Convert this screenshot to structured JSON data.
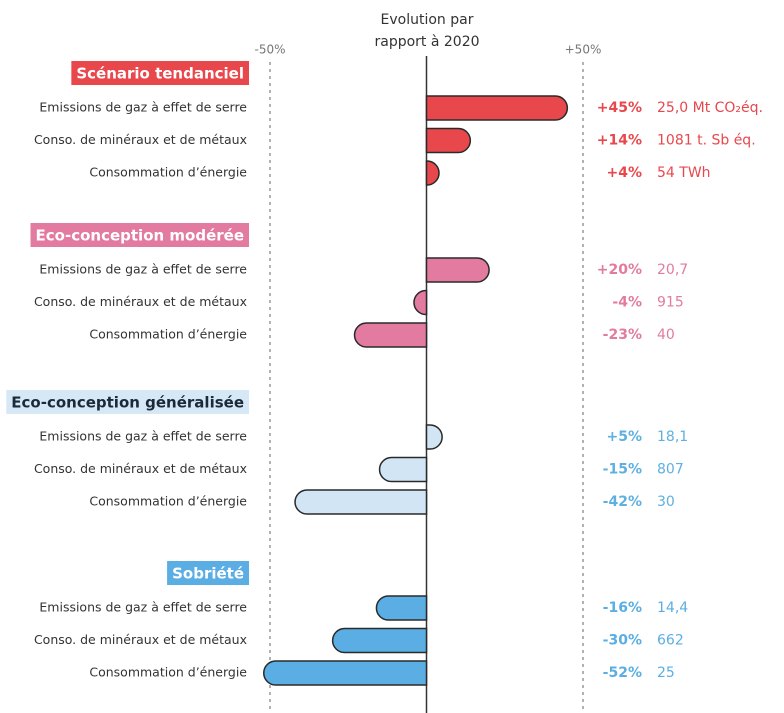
{
  "chart_data": {
    "type": "bar",
    "orientation": "horizontal",
    "title": [
      "Evolution par",
      "rapport à 2020"
    ],
    "xlim": [
      -50,
      50
    ],
    "xticks": [
      {
        "value": -50,
        "label": "-50%"
      },
      {
        "value": 50,
        "label": "+50%"
      }
    ],
    "groups": [
      {
        "name": "Scénario tendanciel",
        "color": "#e8474c",
        "header_color": "#e8474c",
        "header_text_color": "#ffffff",
        "label_color": "#e8474c",
        "categories": [
          "Emissions de gaz à effet de serre",
          "Conso. de minéraux et de métaux",
          "Consommation d’énergie"
        ],
        "values": [
          45,
          14,
          4
        ],
        "value_labels": [
          "+45%",
          "+14%",
          "+4%"
        ],
        "absolute_labels": [
          "25,0 Mt CO₂éq.",
          "1081 t. Sb éq.",
          "54 TWh"
        ]
      },
      {
        "name": "Eco-conception modérée",
        "color": "#e27b9f",
        "header_color": "#e27b9f",
        "header_text_color": "#ffffff",
        "label_color": "#e27b9f",
        "categories": [
          "Emissions de gaz à effet de serre",
          "Conso. de minéraux et de métaux",
          "Consommation d’énergie"
        ],
        "values": [
          20,
          -4,
          -23
        ],
        "value_labels": [
          "+20%",
          "-4%",
          "-23%"
        ],
        "absolute_labels": [
          "20,7",
          "915",
          "40"
        ]
      },
      {
        "name": "Eco-conception généralisée",
        "color": "#d2e5f4",
        "header_color": "#d6e8f6",
        "header_text_color": "#1b2a3a",
        "label_color": "#5fb0e0",
        "categories": [
          "Emissions de gaz à effet de serre",
          "Conso. de minéraux et de métaux",
          "Consommation d’énergie"
        ],
        "values": [
          5,
          -15,
          -42
        ],
        "value_labels": [
          "+5%",
          "-15%",
          "-42%"
        ],
        "absolute_labels": [
          "18,1",
          "807",
          "30"
        ]
      },
      {
        "name": "Sobriété",
        "color": "#5aaee3",
        "header_color": "#5aaee3",
        "header_text_color": "#ffffff",
        "label_color": "#5aaee3",
        "categories": [
          "Emissions de gaz à effet de serre",
          "Conso. de minéraux et de métaux",
          "Consommation d’énergie"
        ],
        "values": [
          -16,
          -30,
          -52
        ],
        "value_labels": [
          "-16%",
          "-30%",
          "-52%"
        ],
        "absolute_labels": [
          "14,4",
          "662",
          "25"
        ]
      }
    ]
  }
}
